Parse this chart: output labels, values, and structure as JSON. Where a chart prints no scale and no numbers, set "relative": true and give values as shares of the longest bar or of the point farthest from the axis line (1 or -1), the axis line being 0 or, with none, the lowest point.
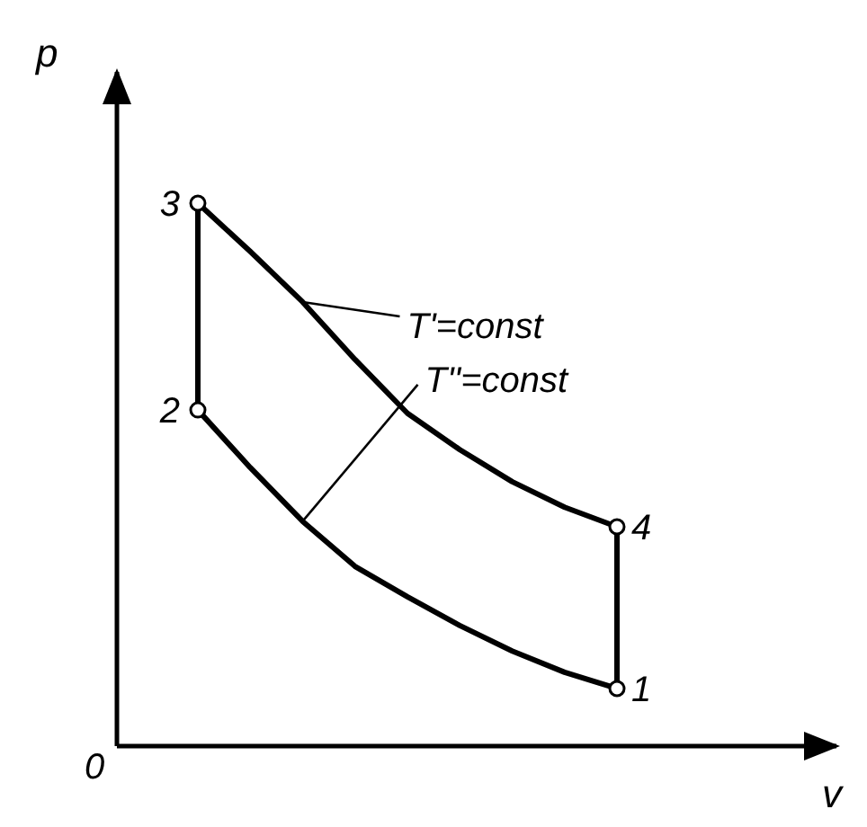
{
  "chart_data": {
    "type": "line",
    "relative": true,
    "xlabel": "v",
    "ylabel": "p",
    "marker": "none",
    "line_style": "solid",
    "categories": [
      null,
      null,
      null,
      null,
      null,
      null,
      null,
      null,
      null
    ],
    "annotations": [
      "0",
      "1",
      "2",
      "3",
      "4"
    ],
    "series": [
      {
        "name": "T'=const",
        "color": "#000000",
        "values": [
          1.0,
          0.911,
          0.818,
          0.712,
          0.613,
          0.546,
          0.487,
          0.44,
          0.404
        ]
      },
      {
        "name": "T''=const",
        "color": "#000000",
        "values": [
          0.619,
          0.513,
          0.414,
          0.331,
          0.275,
          0.222,
          0.175,
          0.136,
          0.106
        ]
      }
    ]
  }
}
